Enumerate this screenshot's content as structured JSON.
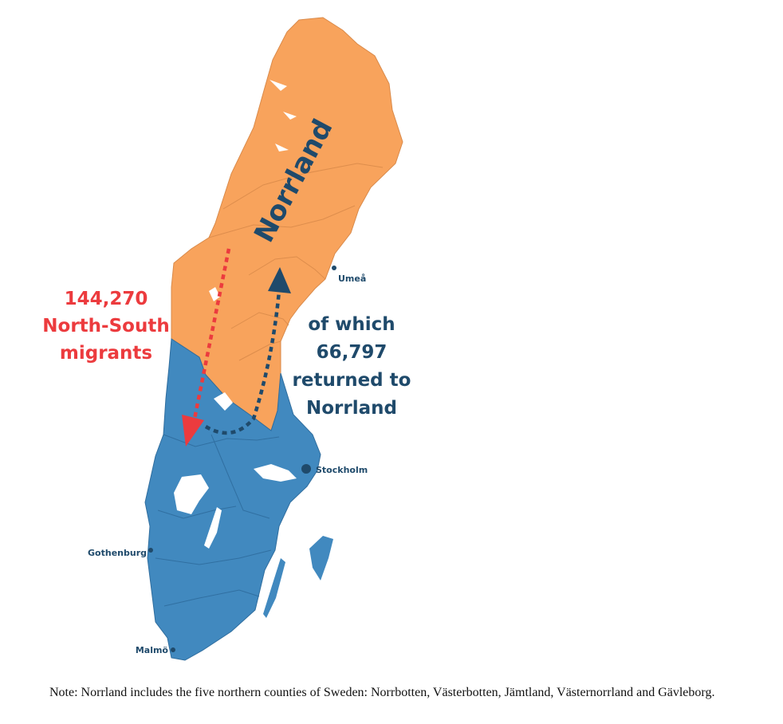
{
  "map": {
    "region_label": "Norrland",
    "migrants_count": "144,270",
    "migrants_label": "North-South",
    "migrants_word": "migrants",
    "returned_prefix": "of which",
    "returned_count": "66,797",
    "returned_label": "returned to",
    "returned_region": "Norrland",
    "cities": {
      "umea": "Umeå",
      "stockholm": "Stockholm",
      "gothenburg": "Gothenburg",
      "malmo": "Malmö"
    },
    "colors": {
      "norrland": "#f8a35c",
      "south": "#4189bf",
      "migrants_arrow": "#ec3b3e",
      "returned_arrow": "#1f4a6b",
      "label_text": "#1f4a6b"
    }
  },
  "note": "Note: Norrland includes the five northern counties of Sweden: Norrbotten, Västerbotten, Jämtland, Västernorrland and Gävleborg."
}
